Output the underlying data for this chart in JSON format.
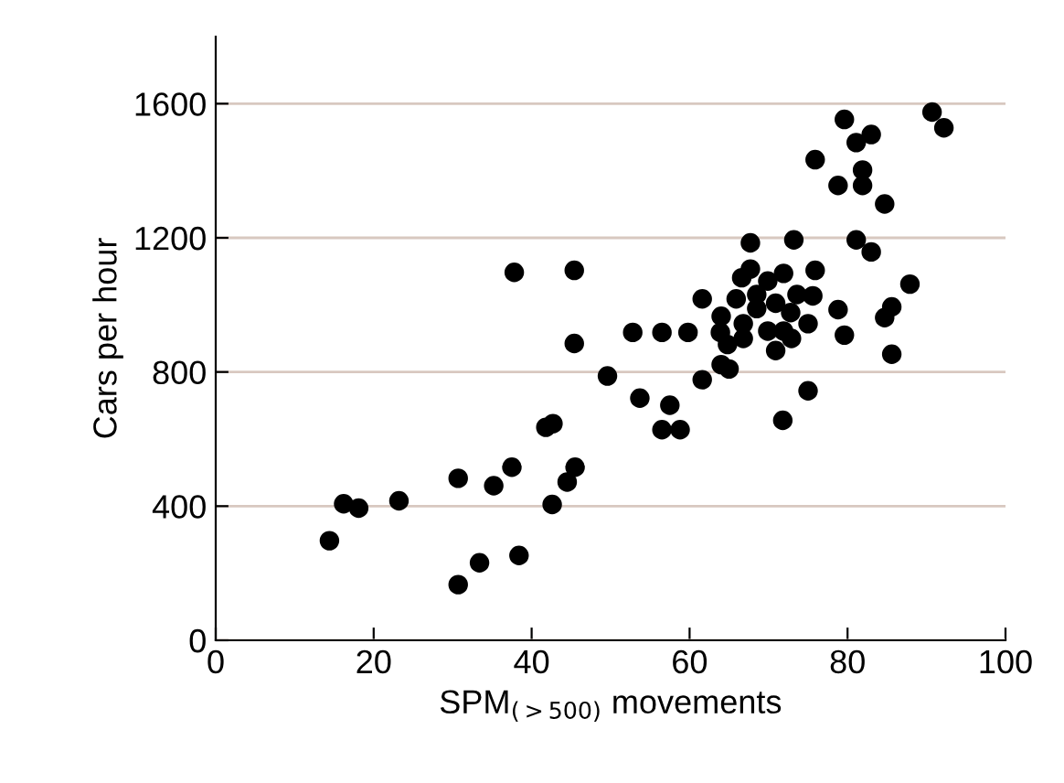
{
  "chart_data": {
    "type": "scatter",
    "xlabel": "SPM$_{(>500)}$ movements",
    "ylabel": "Cars per hour",
    "x": [
      14.4,
      16.2,
      18.1,
      23.2,
      30.7,
      30.7,
      33.4,
      35.2,
      37.5,
      38.4,
      41.8,
      42.7,
      42.6,
      44.5,
      45.5,
      45.4,
      45.4,
      37.8,
      49.6,
      53.7,
      79.6,
      90.7,
      92.2,
      83.0,
      81.1,
      75.9,
      81.9,
      78.8,
      81.9,
      84.7,
      67.7,
      73.2,
      81.1,
      83.0,
      66.6,
      67.7,
      69.9,
      71.9,
      75.9,
      61.6,
      65.9,
      68.5,
      70.9,
      73.6,
      75.6,
      68.5,
      72.8,
      64.0,
      78.8,
      87.9,
      85.6,
      84.7,
      52.8,
      56.5,
      59.8,
      63.9,
      66.8,
      69.9,
      71.9,
      72.9,
      75.0,
      66.8,
      64.8,
      70.9,
      79.6,
      85.6,
      64.0,
      65.0,
      61.6,
      57.5,
      56.5,
      58.8,
      75.0,
      71.8
    ],
    "values": [
      297,
      407,
      394,
      416,
      483,
      166,
      231,
      461,
      516,
      253,
      635,
      646,
      405,
      472,
      516,
      885,
      1103,
      1097,
      788,
      722,
      1553,
      1575,
      1528,
      1508,
      1484,
      1433,
      1402,
      1356,
      1356,
      1301,
      1185,
      1194,
      1194,
      1158,
      1081,
      1107,
      1071,
      1094,
      1103,
      1018,
      1018,
      1031,
      1005,
      1031,
      1027,
      989,
      977,
      966,
      986,
      1062,
      994,
      962,
      918,
      918,
      918,
      918,
      944,
      922,
      922,
      900,
      944,
      900,
      882,
      864,
      910,
      853,
      822,
      809,
      777,
      701,
      628,
      628,
      744,
      656
    ],
    "color": "#000000",
    "marker": "circle",
    "xlim": [
      0,
      100
    ],
    "ylim": [
      0,
      1800
    ],
    "xticks": [
      0,
      20,
      40,
      60,
      80,
      100
    ],
    "yticks": [
      0,
      400,
      800,
      1200,
      1600
    ],
    "grid": "y"
  }
}
